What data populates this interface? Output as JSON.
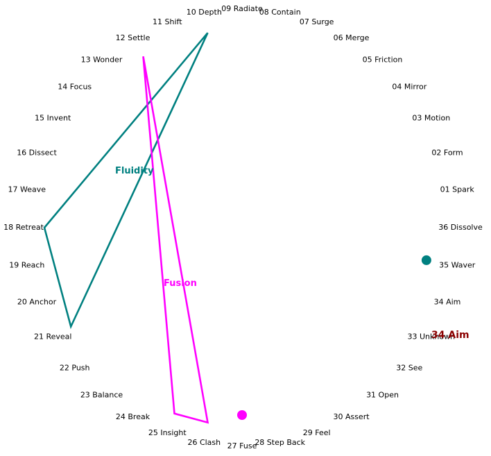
{
  "nodes": [
    "01 Spark",
    "02 Form",
    "03 Motion",
    "04 Mirror",
    "05 Friction",
    "06 Merge",
    "07 Surge",
    "08 Contain",
    "09 Radiate",
    "10 Depth",
    "11 Shift",
    "12 Settle",
    "13 Wonder",
    "14 Focus",
    "15 Invent",
    "16 Dissect",
    "17 Weave",
    "18 Retreat",
    "19 Reach",
    "20 Anchor",
    "21 Reveal",
    "22 Push",
    "23 Balance",
    "24 Break",
    "25 Insight",
    "26 Clash",
    "27 Fuse",
    "28 Step Back",
    "29 Feel",
    "30 Assert",
    "31 Open",
    "32 See",
    "33 Unknown",
    "34 Aim",
    "35 Waver",
    "36 Dissolve"
  ],
  "shapes": [
    {
      "label": "Fluidity",
      "color": "#008080",
      "vertices": [
        "10 Depth",
        "18 Retreat",
        "21 Reveal"
      ],
      "marker_node": "35 Waver"
    },
    {
      "label": "Fusion",
      "color": "#ff00ff",
      "vertices": [
        "12 Settle",
        "26 Clash",
        "25 Insight"
      ],
      "marker_node": "27 Fuse"
    }
  ],
  "focus": {
    "label": "34 Aim",
    "color": "#8b0000"
  }
}
